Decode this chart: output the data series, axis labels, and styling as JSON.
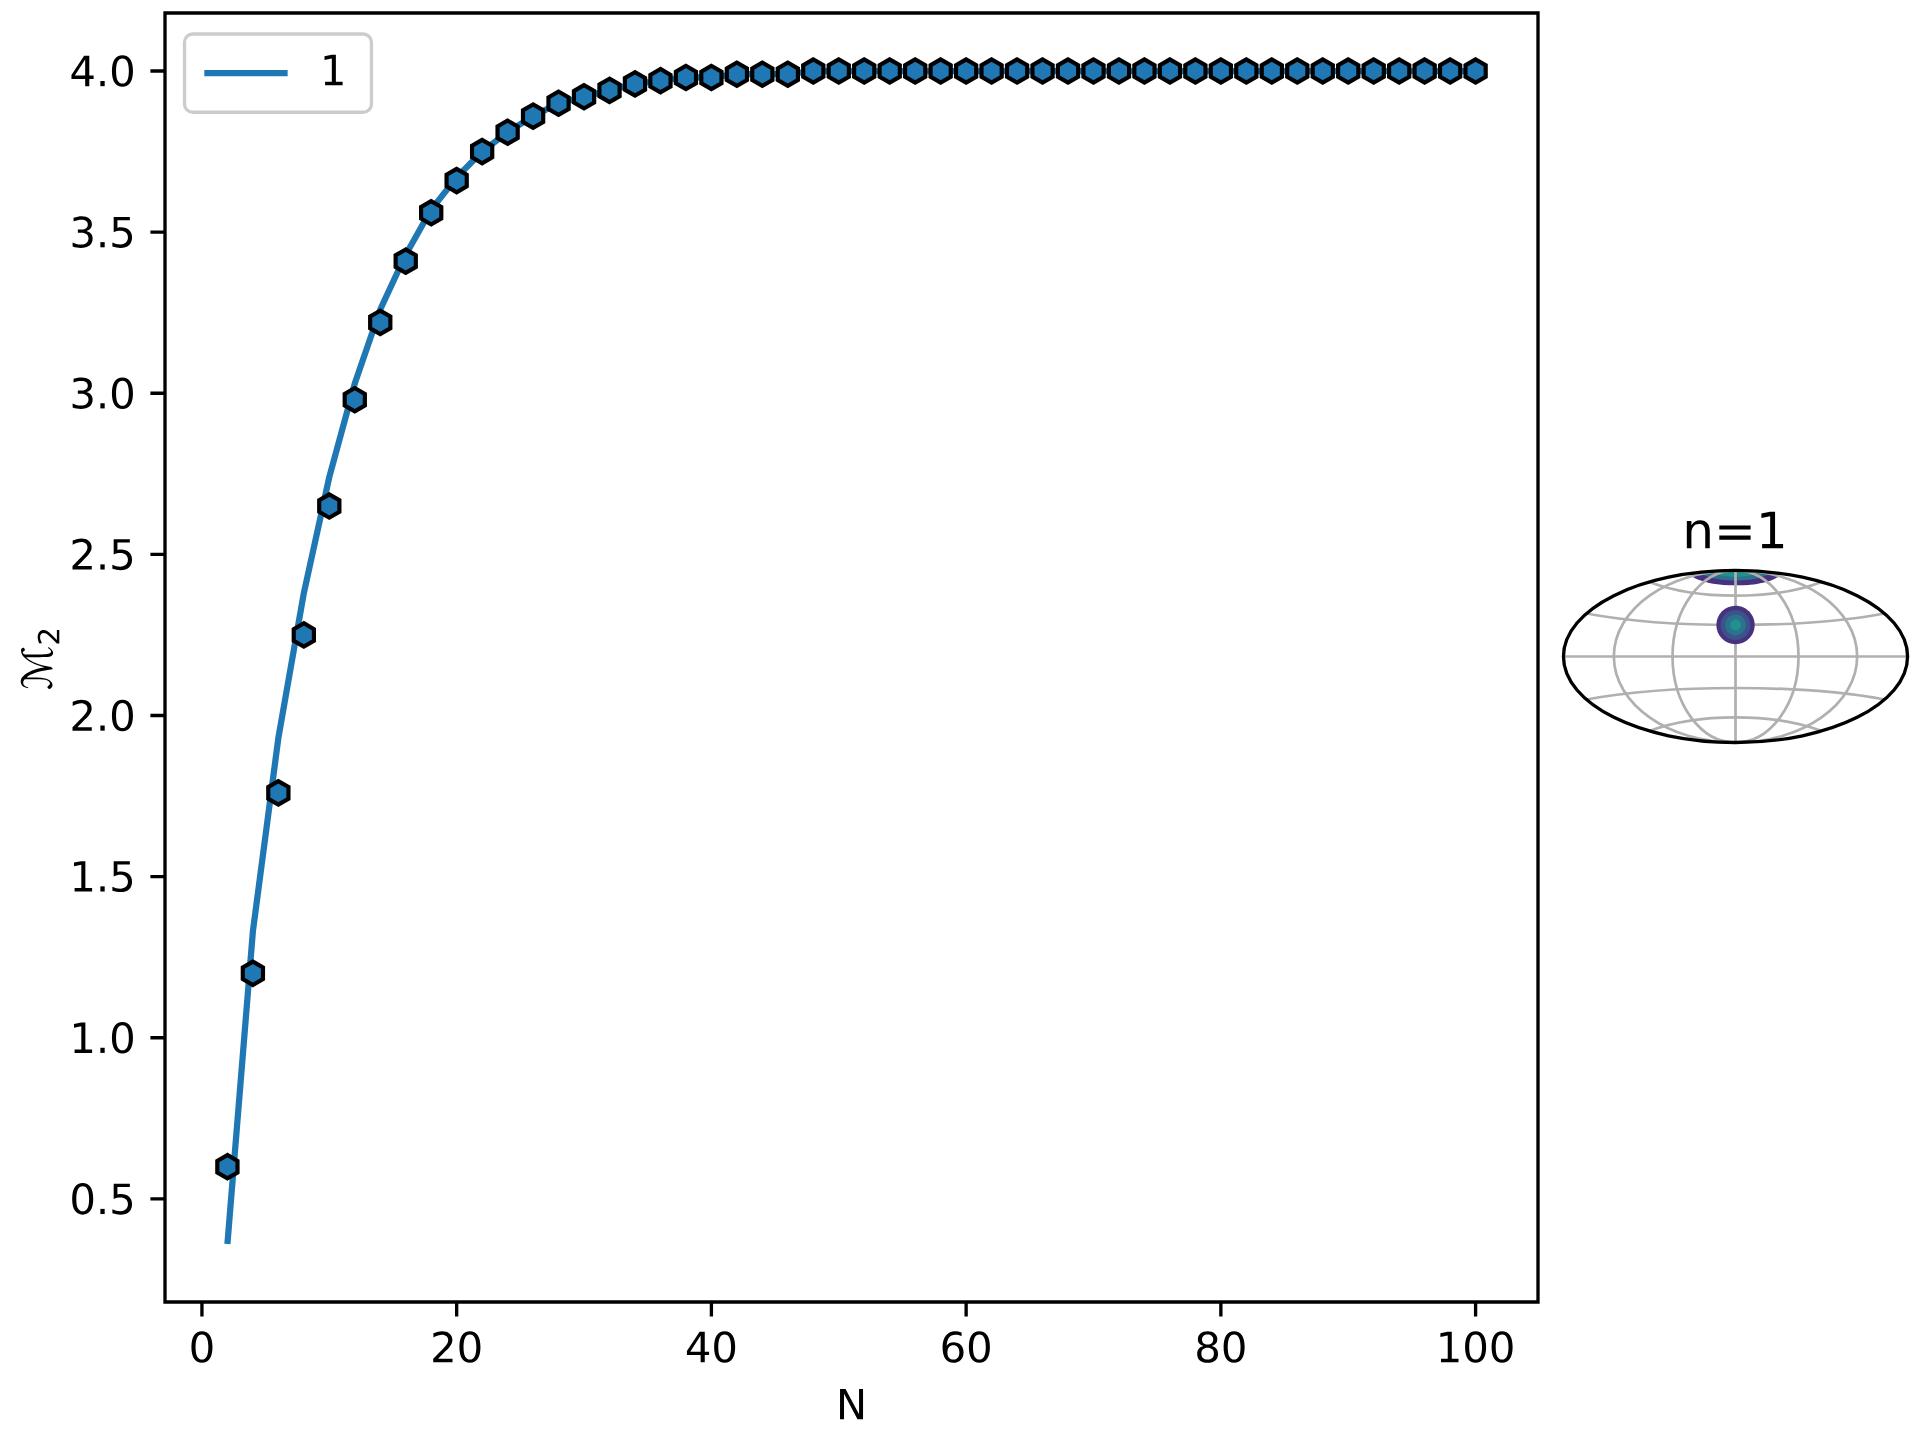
{
  "chart_data": {
    "type": "line",
    "xlabel": "N",
    "ylabel": "ℳ$_{2}$",
    "annotations": [
      "n=1"
    ],
    "xlim": [
      -2.9,
      104.9
    ],
    "ylim": [
      0.18,
      4.18
    ],
    "xticks": [
      0,
      20,
      40,
      60,
      80,
      100
    ],
    "yticks": [
      0.5,
      {
        "value": 1,
        "label": "1.0"
      },
      1.5,
      {
        "value": 2,
        "label": "2.0"
      },
      2.5,
      {
        "value": 3,
        "label": "3.0"
      },
      3.5,
      {
        "value": 4,
        "label": "4.0"
      }
    ],
    "legend": "top left",
    "x": [
      2,
      4,
      6,
      8,
      10,
      12,
      14,
      16,
      18,
      20,
      22,
      24,
      26,
      28,
      30,
      32,
      34,
      36,
      38,
      40,
      42,
      44,
      46,
      48,
      50,
      52,
      54,
      56,
      58,
      60,
      62,
      64,
      66,
      68,
      70,
      72,
      74,
      76,
      78,
      80,
      82,
      84,
      86,
      88,
      90,
      92,
      94,
      96,
      98,
      100
    ],
    "series": [
      {
        "name": "1",
        "color": "#1f77b4",
        "line_style": "solid",
        "values": [
          0.36,
          1.33,
          1.93,
          2.38,
          2.74,
          3.03,
          3.26,
          3.43,
          3.57,
          3.67,
          3.75,
          3.81,
          3.86,
          3.9,
          3.92,
          3.94,
          3.96,
          3.97,
          3.98,
          3.98,
          3.99,
          3.99,
          3.99,
          4.0,
          4.0,
          4.0,
          4.0,
          4.0,
          4.0,
          4.0,
          4.0,
          4.0,
          4.0,
          4.0,
          4.0,
          4.0,
          4.0,
          4.0,
          4.0,
          4.0,
          4.0,
          4.0,
          4.0,
          4.0,
          4.0,
          4.0,
          4.0,
          4.0,
          4.0,
          4.0
        ]
      },
      {
        "type": "scatter",
        "color": "#1f77b4",
        "values": [
          0.6,
          1.2,
          1.76,
          2.25,
          2.65,
          2.98,
          3.22,
          3.41,
          3.56,
          3.66,
          3.75,
          3.81,
          3.86,
          3.9,
          3.92,
          3.94,
          3.96,
          3.97,
          3.98,
          3.98,
          3.99,
          3.99,
          3.99,
          4.0,
          4.0,
          4.0,
          4.0,
          4.0,
          4.0,
          4.0,
          4.0,
          4.0,
          4.0,
          4.0,
          4.0,
          4.0,
          4.0,
          4.0,
          4.0,
          4.0,
          4.0,
          4.0,
          4.0,
          4.0,
          4.0,
          4.0,
          4.0,
          4.0,
          4.0,
          4.0
        ]
      }
    ]
  }
}
